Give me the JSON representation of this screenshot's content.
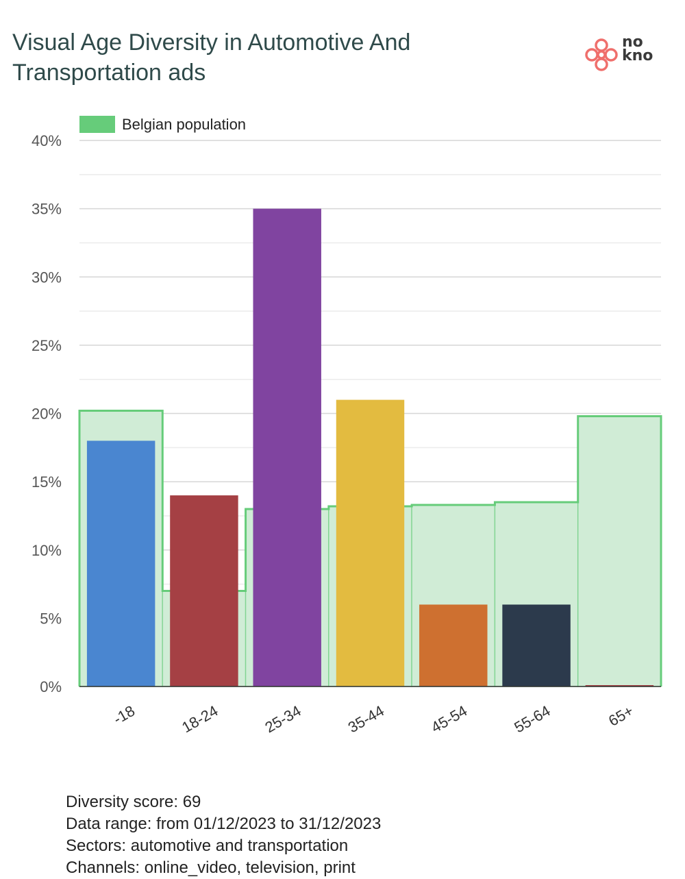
{
  "title": "Visual Age Diversity in Automotive And Transportation ads",
  "logo": {
    "text_top": "no",
    "text_bottom": "kno",
    "color": "#ef6f6c"
  },
  "chart_data": {
    "type": "bar",
    "categories": [
      "-18",
      "18-24",
      "25-34",
      "35-44",
      "45-54",
      "55-64",
      "65+"
    ],
    "values": [
      18,
      14,
      35,
      21,
      6,
      6,
      0.1
    ],
    "colors": [
      "#4a86d0",
      "#a54044",
      "#8044a0",
      "#e3bb40",
      "#ce7030",
      "#2c3a4c",
      "#a54044"
    ],
    "series": [
      {
        "name": "Belgian population",
        "values": [
          20.2,
          7.0,
          13.0,
          13.2,
          13.3,
          13.5,
          19.8
        ],
        "type": "step-area",
        "color": "#66cc7a",
        "fill": "#d0ecd6"
      }
    ],
    "yticks": [
      "0%",
      "5%",
      "10%",
      "15%",
      "20%",
      "25%",
      "30%",
      "35%",
      "40%"
    ],
    "ylim": [
      0,
      40
    ],
    "grid": true,
    "legend": "top-left"
  },
  "footer": {
    "line1": "Diversity score: 69",
    "line2": "Data range: from 01/12/2023 to 31/12/2023",
    "line3": "Sectors: automotive and transportation",
    "line4": "Channels: online_video, television, print"
  }
}
